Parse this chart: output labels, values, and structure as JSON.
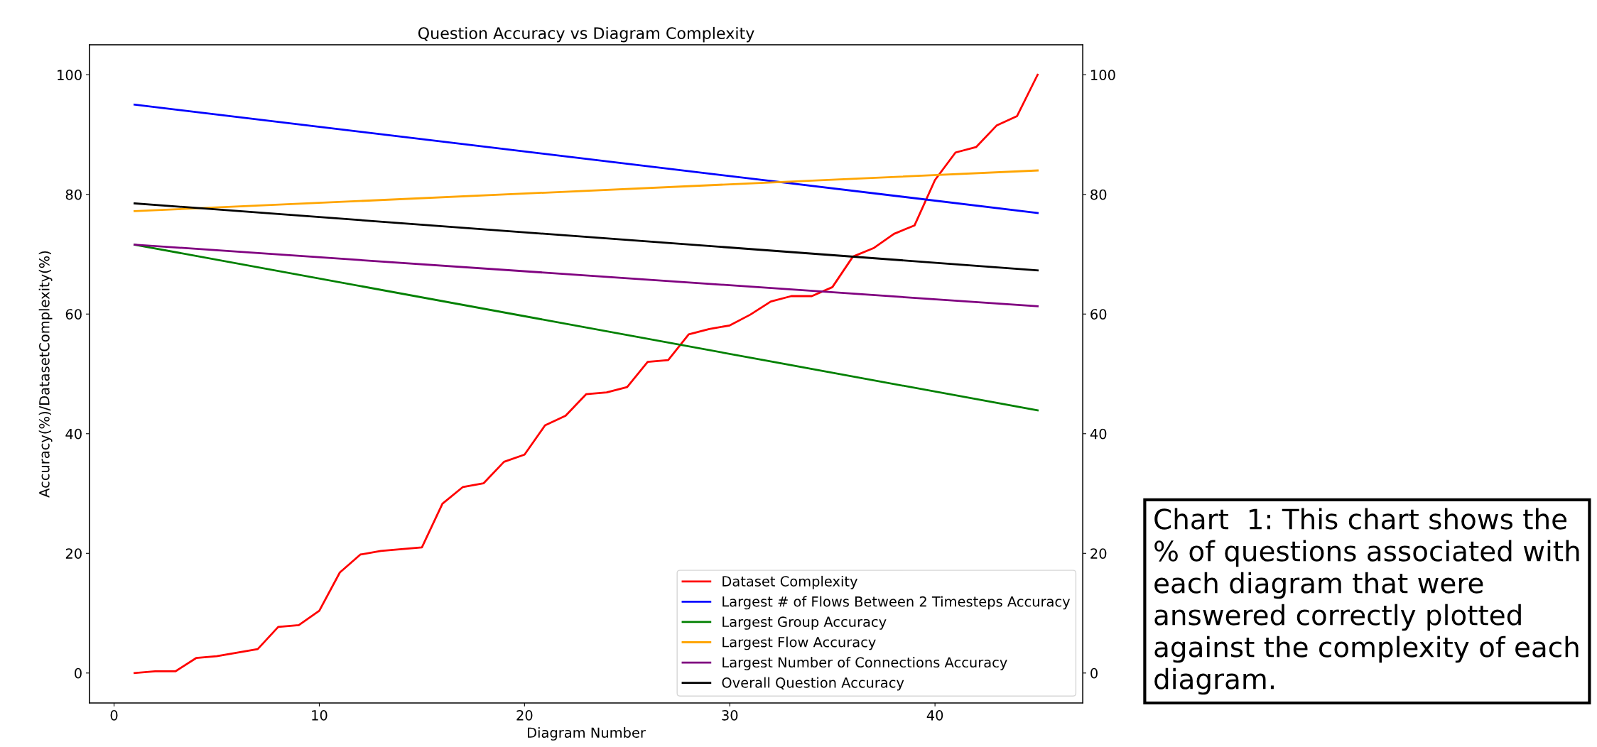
{
  "chart_data": {
    "type": "line",
    "title": "Question Accuracy vs Diagram Complexity",
    "xlabel": "Diagram Number",
    "ylabel": "Accuracy(%)/DatasetComplexity(%)",
    "series": [
      {
        "name": "Dataset Complexity",
        "color": "#ff0000",
        "x": [
          1,
          2,
          3,
          4,
          5,
          6,
          7,
          8,
          9,
          10,
          11,
          12,
          13,
          14,
          15,
          16,
          17,
          18,
          19,
          20,
          21,
          22,
          23,
          24,
          25,
          26,
          27,
          28,
          29,
          30,
          31,
          32,
          33,
          34,
          35,
          36,
          37,
          38,
          39,
          40,
          41,
          42,
          43,
          44,
          45
        ],
        "values": [
          0,
          0.3,
          0.3,
          2.5,
          2.8,
          3.4,
          4,
          7.7,
          8,
          10.4,
          16.8,
          19.8,
          20.4,
          20.7,
          21,
          28.3,
          31.1,
          31.7,
          35.3,
          36.5,
          41.4,
          43,
          46.6,
          46.9,
          47.8,
          52,
          52.3,
          56.6,
          57.5,
          58.1,
          59.9,
          62.1,
          63,
          63,
          64.5,
          69.6,
          71,
          73.4,
          74.8,
          82.4,
          87,
          87.9,
          91.5,
          93.1,
          100
        ]
      },
      {
        "name": "Largest # of Flows Between 2 Timesteps Accuracy",
        "color": "#0000ff",
        "x": [
          1,
          45
        ],
        "values": [
          95,
          76.9
        ]
      },
      {
        "name": "Largest Group Accuracy",
        "color": "#008000",
        "x": [
          1,
          45
        ],
        "values": [
          71.6,
          43.9
        ]
      },
      {
        "name": "Largest Flow Accuracy",
        "color": "#ffa500",
        "x": [
          1,
          45
        ],
        "values": [
          77.2,
          84
        ]
      },
      {
        "name": "Largest Number of Connections Accuracy",
        "color": "#800080",
        "x": [
          1,
          45
        ],
        "values": [
          71.6,
          61.3
        ]
      },
      {
        "name": "Overall Question Accuracy",
        "color": "#000000",
        "x": [
          1,
          45
        ],
        "values": [
          78.5,
          67.3
        ]
      }
    ],
    "xlim": [
      -1.2,
      47.2
    ],
    "xticks": [
      0,
      10,
      20,
      30,
      40
    ],
    "ylim": [
      -5,
      105
    ],
    "yticks": [
      0,
      20,
      40,
      60,
      80,
      100
    ],
    "y2lim": [
      -5,
      105
    ],
    "y2ticks": [
      0,
      20,
      40,
      60,
      80,
      100
    ],
    "legend": "bottom right",
    "grid": false,
    "marker": "none",
    "line_style": "solid",
    "annotations": [
      "Chart  1: This chart shows the\n% of questions associated with\neach diagram that were\nanswered correctly plotted\nagainst the complexity of each\ndiagram."
    ]
  }
}
